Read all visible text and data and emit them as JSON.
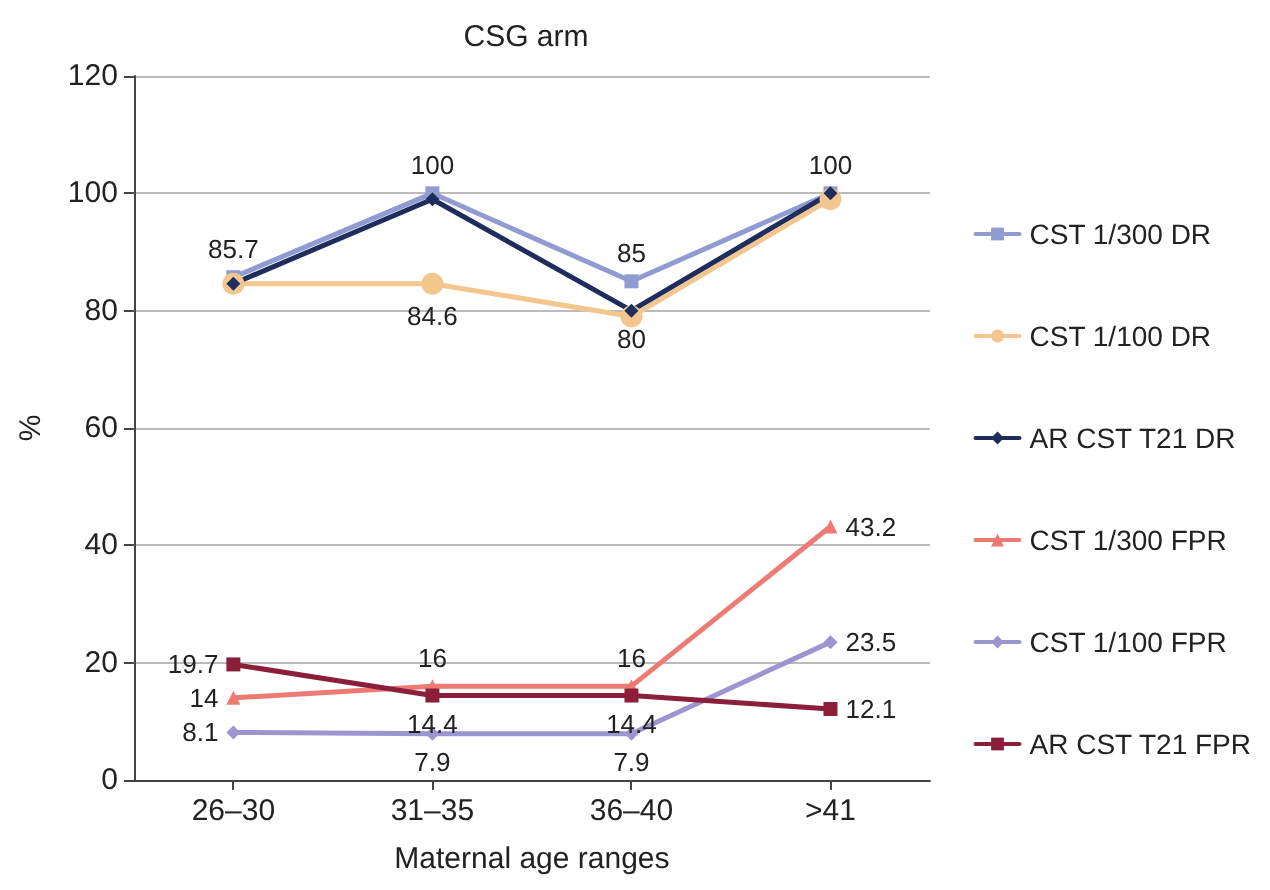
{
  "chart_data": {
    "type": "line",
    "title": "CSG arm",
    "xlabel": "Maternal age ranges",
    "ylabel": "%",
    "categories": [
      "26–30",
      "31–35",
      "36–40",
      ">41"
    ],
    "series": [
      {
        "name": "CST 1/300 DR",
        "color": "#8f9bd1",
        "marker": "square",
        "values": [
          85.7,
          100,
          85,
          100
        ],
        "value_labels": [
          "85.7",
          "100",
          "85",
          "100"
        ]
      },
      {
        "name": "CST 1/100 DR",
        "color": "#f2c68c",
        "marker": "circle",
        "values": [
          84.6,
          84.6,
          79,
          99
        ],
        "value_labels": [
          null,
          "84.6",
          null,
          null
        ]
      },
      {
        "name": "AR CST T21 DR",
        "color": "#1f2d5c",
        "marker": "diamond",
        "values": [
          84.6,
          99,
          80,
          100
        ],
        "value_labels": [
          null,
          null,
          "80",
          null
        ]
      },
      {
        "name": "CST 1/300 FPR",
        "color": "#ee7a74",
        "marker": "triangle",
        "values": [
          14,
          16,
          16,
          43.2
        ],
        "value_labels": [
          "14",
          "16",
          "16",
          "43.2"
        ]
      },
      {
        "name": "CST 1/100 FPR",
        "color": "#9b95d0",
        "marker": "diamond",
        "values": [
          8.1,
          7.9,
          7.9,
          23.5
        ],
        "value_labels": [
          "8.1",
          "7.9",
          "7.9",
          "23.5"
        ]
      },
      {
        "name": "AR CST T21 FPR",
        "color": "#8b1f3a",
        "marker": "square",
        "values": [
          19.7,
          14.4,
          14.4,
          12.1
        ],
        "value_labels": [
          "19.7",
          "14.4",
          "14.4",
          "12.1"
        ]
      }
    ],
    "ylim": [
      0,
      120
    ],
    "yticks": [
      0,
      20,
      40,
      60,
      80,
      100,
      120
    ],
    "grid": "y",
    "legend": "right",
    "line_style": "solid"
  }
}
